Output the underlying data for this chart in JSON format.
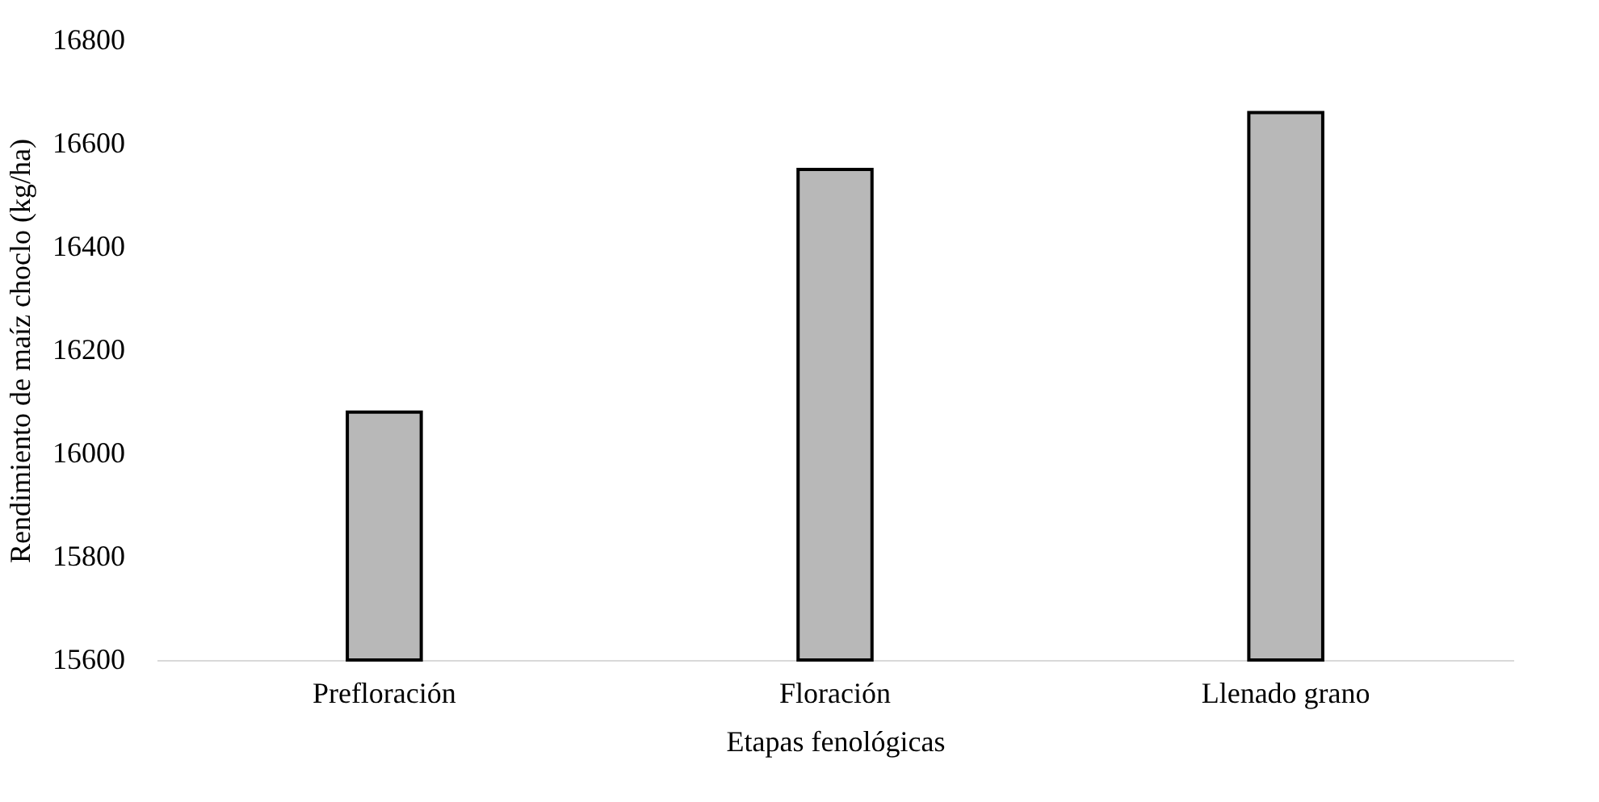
{
  "chart_data": {
    "type": "bar",
    "xlabel": "Etapas fenológicas",
    "ylabel": "Rendimiento de maíz choclo (kg/ha)",
    "categories": [
      "Prefloración",
      "Floración",
      "Llenado grano"
    ],
    "values": [
      16080,
      16550,
      16660
    ],
    "color": "#b8b8b8",
    "ylim": [
      15600,
      16800
    ],
    "yticks": [
      15600,
      15800,
      16000,
      16200,
      16400,
      16600,
      16800
    ],
    "grid": false
  }
}
